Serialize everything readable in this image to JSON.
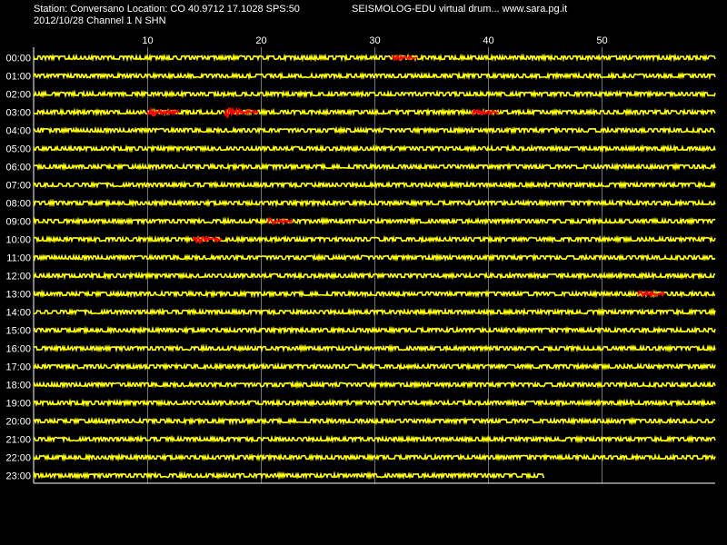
{
  "header": {
    "station_line": "Station: Conversano Location: CO 40.9712 17.1028 SPS:50",
    "date_line": "2012/10/28  Channel 1 N SHN",
    "title_right": "SEISMOLOG-EDU virtual drum... www.sara.pg.it"
  },
  "chart_data": {
    "type": "line",
    "xlabel": "",
    "ylabel": "",
    "x_unit": "minutes",
    "xlim": [
      0,
      60
    ],
    "x_ticks": [
      10,
      20,
      30,
      40,
      50
    ],
    "hours": [
      "00:00",
      "01:00",
      "02:00",
      "03:00",
      "04:00",
      "05:00",
      "06:00",
      "07:00",
      "08:00",
      "09:00",
      "10:00",
      "11:00",
      "12:00",
      "13:00",
      "14:00",
      "15:00",
      "16:00",
      "17:00",
      "18:00",
      "19:00",
      "20:00",
      "21:00",
      "22:00",
      "23:00"
    ],
    "last_hour_end_minute": 45,
    "grid": true,
    "colors": {
      "background": "#000000",
      "trace": "#ffff00",
      "event": "#ff0000",
      "grid": "#ffffff",
      "text": "#ffffff"
    },
    "events": [
      {
        "hour": "00:00",
        "start_min": 31.6,
        "end_min": 33.8,
        "amplitude": 2.5
      },
      {
        "hour": "03:00",
        "start_min": 10.0,
        "end_min": 12.8,
        "amplitude": 4
      },
      {
        "hour": "03:00",
        "start_min": 16.8,
        "end_min": 19.8,
        "amplitude": 6
      },
      {
        "hour": "03:00",
        "start_min": 38.6,
        "end_min": 41.0,
        "amplitude": 4
      },
      {
        "hour": "09:00",
        "start_min": 20.6,
        "end_min": 22.8,
        "amplitude": 2.5
      },
      {
        "hour": "10:00",
        "start_min": 14.0,
        "end_min": 16.6,
        "amplitude": 6
      },
      {
        "hour": "13:00",
        "start_min": 53.2,
        "end_min": 55.6,
        "amplitude": 2.5
      }
    ]
  }
}
